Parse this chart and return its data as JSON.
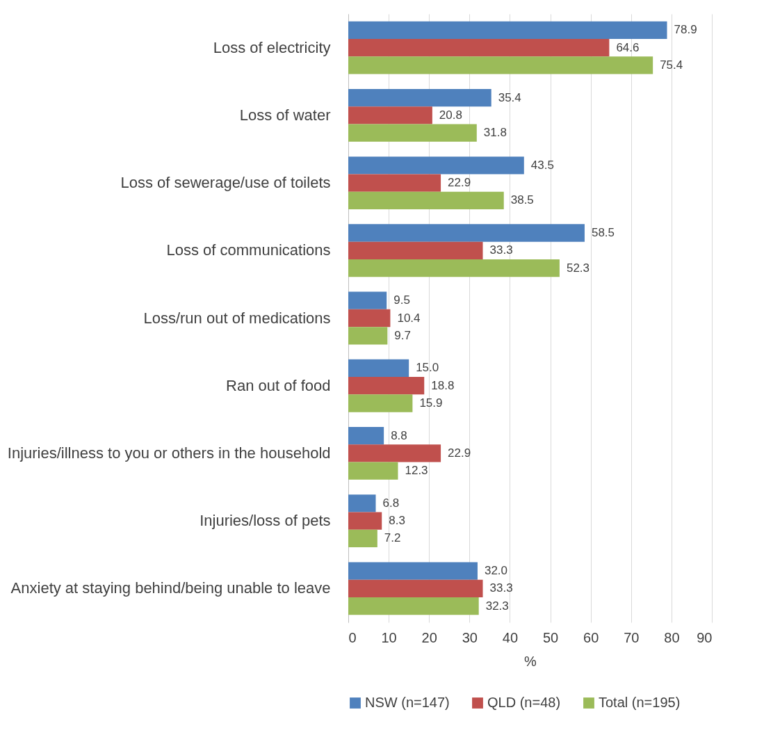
{
  "chart_data": {
    "type": "bar",
    "orientation": "horizontal",
    "xlabel": "%",
    "categories": [
      "Loss of electricity",
      "Loss of water",
      "Loss of sewerage/use of toilets",
      "Loss of communications",
      "Loss/run out of medications",
      "Ran out of food",
      "Injuries/illness to you or others in the household",
      "Injuries/loss of pets",
      "Anxiety at staying behind/being unable to leave"
    ],
    "series": [
      {
        "name": "NSW (n=147)",
        "color": "#4f81bd",
        "values": [
          78.9,
          35.4,
          43.5,
          58.5,
          9.5,
          15.0,
          8.8,
          6.8,
          32.0
        ],
        "value_labels": [
          "78.9",
          "35.4",
          "43.5",
          "58.5",
          "9.5",
          "15.0",
          "8.8",
          "6.8",
          "32.0"
        ]
      },
      {
        "name": "QLD (n=48)",
        "color": "#c0504d",
        "values": [
          64.6,
          20.8,
          22.9,
          33.3,
          10.4,
          18.8,
          22.9,
          8.3,
          33.3
        ],
        "value_labels": [
          "64.6",
          "20.8",
          "22.9",
          "33.3",
          "10.4",
          "18.8",
          "22.9",
          "8.3",
          "33.3"
        ]
      },
      {
        "name": "Total (n=195)",
        "color": "#9bbb59",
        "values": [
          75.4,
          31.8,
          38.5,
          52.3,
          9.7,
          15.9,
          12.3,
          7.2,
          32.3
        ],
        "value_labels": [
          "75.4",
          "31.8",
          "38.5",
          "52.3",
          "9.7",
          "15.9",
          "12.3",
          "7.2",
          "32.3"
        ]
      }
    ],
    "xlim": [
      0,
      90
    ],
    "xticks": [
      0,
      10,
      20,
      30,
      40,
      50,
      60,
      70,
      80,
      90
    ],
    "grid": "x",
    "legend": "bottom"
  }
}
